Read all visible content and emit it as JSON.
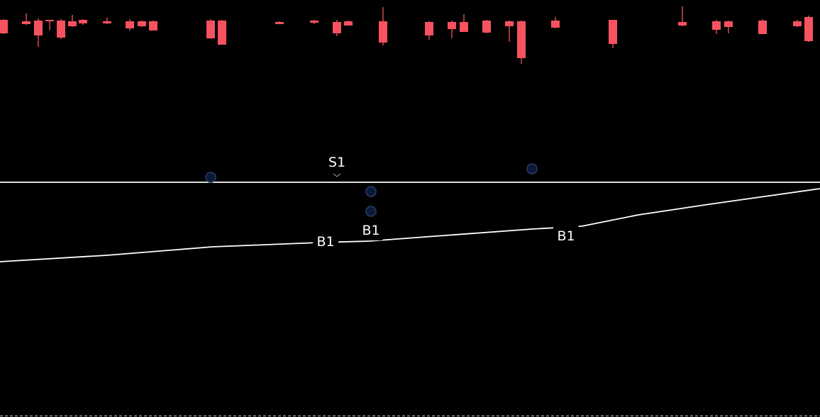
{
  "colors": {
    "background": "#000000",
    "down_candle": "#f7525f",
    "up_candle": "#089981",
    "line": "#ffffff",
    "signal_marker": "#0c1a3a",
    "signal_marker_stroke": "#2a3d66",
    "label_text": "#ffffff",
    "bottom_border": "#c8c8c8"
  },
  "chart_data": {
    "type": "candlestick",
    "title": "",
    "xlabel": "",
    "ylabel": "",
    "grid": false,
    "legend": "none",
    "ylim": [
      0,
      588
    ],
    "candles": [
      {
        "x": 5,
        "open": 560,
        "close": 541,
        "high": 561,
        "low": 540
      },
      {
        "x": 37,
        "open": 558,
        "close": 554,
        "high": 569,
        "low": 553
      },
      {
        "x": 54,
        "open": 559,
        "close": 538,
        "high": 562,
        "low": 522
      },
      {
        "x": 70,
        "open": 560,
        "close": 558,
        "high": 560,
        "low": 545
      },
      {
        "x": 86,
        "open": 559,
        "close": 535,
        "high": 561,
        "low": 533
      },
      {
        "x": 102,
        "open": 558,
        "close": 551,
        "high": 567,
        "low": 550
      },
      {
        "x": 117,
        "open": 560,
        "close": 555,
        "high": 561,
        "low": 553
      },
      {
        "x": 151,
        "open": 558,
        "close": 555,
        "high": 563,
        "low": 554
      },
      {
        "x": 183,
        "open": 558,
        "close": 548,
        "high": 561,
        "low": 545
      },
      {
        "x": 200,
        "open": 558,
        "close": 551,
        "high": 559,
        "low": 550
      },
      {
        "x": 216,
        "open": 558,
        "close": 545,
        "high": 559,
        "low": 545
      },
      {
        "x": 297,
        "open": 559,
        "close": 534,
        "high": 561,
        "low": 533
      },
      {
        "x": 313,
        "open": 559,
        "close": 525,
        "high": 560,
        "low": 525
      },
      {
        "x": 394,
        "open": 557,
        "close": 554,
        "high": 558,
        "low": 554
      },
      {
        "x": 443,
        "open": 559,
        "close": 556,
        "high": 560,
        "low": 554
      },
      {
        "x": 475,
        "open": 557,
        "close": 541,
        "high": 560,
        "low": 537
      },
      {
        "x": 491,
        "open": 558,
        "close": 552,
        "high": 559,
        "low": 552
      },
      {
        "x": 540,
        "open": 558,
        "close": 528,
        "high": 578,
        "low": 524
      },
      {
        "x": 605,
        "open": 557,
        "close": 538,
        "high": 558,
        "low": 532
      },
      {
        "x": 637,
        "open": 557,
        "close": 547,
        "high": 559,
        "low": 534
      },
      {
        "x": 654,
        "open": 557,
        "close": 543,
        "high": 568,
        "low": 543
      },
      {
        "x": 686,
        "open": 559,
        "close": 542,
        "high": 560,
        "low": 541
      },
      {
        "x": 718,
        "open": 558,
        "close": 551,
        "high": 559,
        "low": 529
      },
      {
        "x": 735,
        "open": 558,
        "close": 506,
        "high": 559,
        "low": 498
      },
      {
        "x": 783,
        "open": 559,
        "close": 549,
        "high": 564,
        "low": 548
      },
      {
        "x": 864,
        "open": 560,
        "close": 526,
        "high": 560,
        "low": 520
      },
      {
        "x": 962,
        "open": 557,
        "close": 552,
        "high": 579,
        "low": 551
      },
      {
        "x": 1010,
        "open": 558,
        "close": 546,
        "high": 560,
        "low": 540
      },
      {
        "x": 1027,
        "open": 558,
        "close": 550,
        "high": 559,
        "low": 541
      },
      {
        "x": 1075,
        "open": 559,
        "close": 540,
        "high": 561,
        "low": 540
      },
      {
        "x": 1124,
        "open": 558,
        "close": 551,
        "high": 560,
        "low": 550
      },
      {
        "x": 1140,
        "open": 564,
        "close": 530,
        "high": 566,
        "low": 529
      }
    ],
    "series": [
      {
        "x": [
          0,
          1156
        ],
        "y": [
          331,
          331
        ]
      },
      {
        "x": [
          0,
          150,
          300,
          450,
          520,
          600,
          750,
          820,
          900,
          1000,
          1156
        ],
        "y": [
          219,
          228,
          240,
          246,
          248,
          254,
          265,
          269,
          285,
          300,
          322
        ]
      }
    ],
    "markers": [
      {
        "x": 297,
        "y": 338
      },
      {
        "x": 523,
        "y": 318
      },
      {
        "x": 523,
        "y": 290
      },
      {
        "x": 750,
        "y": 350
      }
    ],
    "signals": [
      {
        "label": "S1",
        "x": 475,
        "y": 360
      },
      {
        "label": "B1",
        "x": 459,
        "y": 248
      },
      {
        "label": "B1",
        "x": 523,
        "y": 264
      },
      {
        "label": "B1",
        "x": 798,
        "y": 256
      }
    ]
  }
}
